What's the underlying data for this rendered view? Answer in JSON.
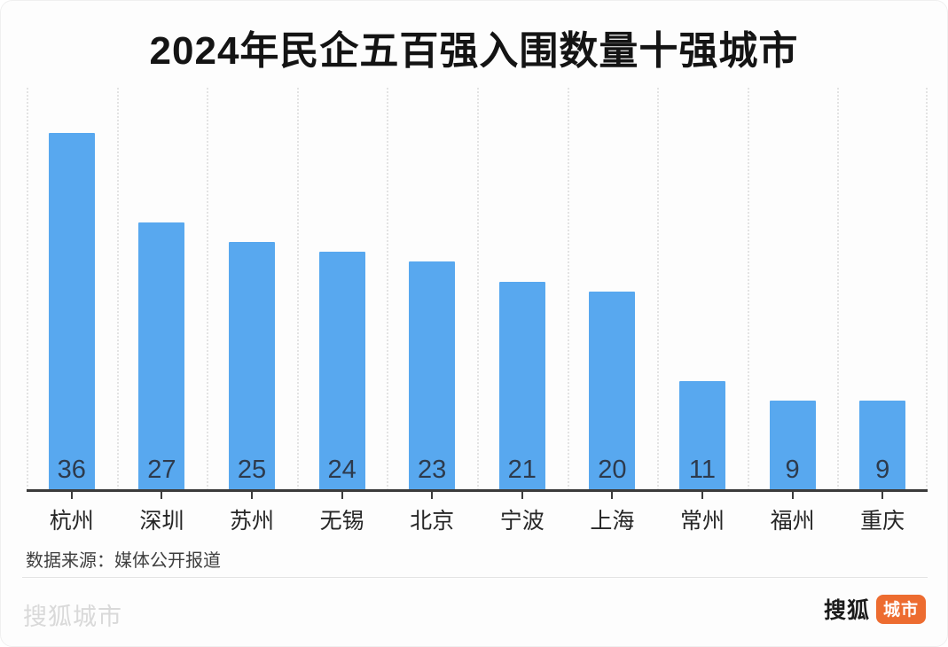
{
  "title": "2024年民企五百强入围数量十强城市",
  "chart_data": {
    "type": "bar",
    "title": "2024年民企五百强入围数量十强城市",
    "categories": [
      "杭州",
      "深圳",
      "苏州",
      "无锡",
      "北京",
      "宁波",
      "上海",
      "常州",
      "福州",
      "重庆"
    ],
    "values": [
      36,
      27,
      25,
      24,
      23,
      21,
      20,
      11,
      9,
      9
    ],
    "xlabel": "",
    "ylabel": "",
    "ylim": [
      0,
      38
    ],
    "grid": "dotted-vertical-column-separators",
    "legend": "none",
    "bar_color": "#58a8ef",
    "value_label_color": "#2d3a4c",
    "axis_color": "#3b3b3b",
    "value_labels_position": "inside-bottom"
  },
  "source_note": "数据来源：媒体公开报道",
  "footer": {
    "watermark": "搜狐城市",
    "logo_brand": "搜狐",
    "logo_badge": "城市",
    "badge_color": "#ed6c30"
  }
}
